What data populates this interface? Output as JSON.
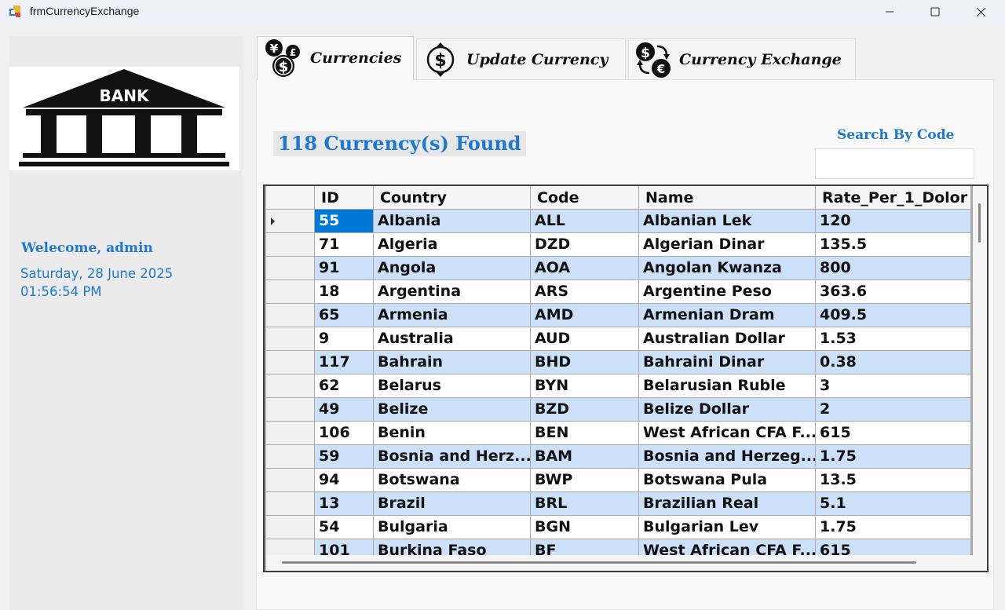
{
  "window": {
    "title": "frmCurrencyExchange"
  },
  "colors": {
    "accent": "#1e78d2",
    "row_alt": "#cce0fa",
    "selected": "#0078d7"
  },
  "logo": {
    "text": "BANK"
  },
  "user": {
    "welcome": "Welecome, admin",
    "date": "Saturday, 28 June 2025",
    "time": "01:56:54 PM"
  },
  "tabs": [
    {
      "label": "Currencies",
      "icon": "currencies-icon",
      "active": true
    },
    {
      "label": "Update Currency",
      "icon": "dollar-refresh-icon",
      "active": false
    },
    {
      "label": "Currency Exchange",
      "icon": "exchange-icon",
      "active": false
    }
  ],
  "main": {
    "found_count": "118",
    "found_suffix": " Currency(s) Found",
    "search_label": "Search By Code",
    "search_value": ""
  },
  "grid": {
    "columns": [
      "ID",
      "Country",
      "Code",
      "Name",
      "Rate_Per_1_Dolor"
    ],
    "rows": [
      [
        "55",
        "Albania",
        "ALL",
        "Albanian Lek",
        "120"
      ],
      [
        "71",
        "Algeria",
        "DZD",
        "Algerian Dinar",
        "135.5"
      ],
      [
        "91",
        "Angola",
        "AOA",
        "Angolan Kwanza",
        "800"
      ],
      [
        "18",
        "Argentina",
        "ARS",
        "Argentine Peso",
        "363.6"
      ],
      [
        "65",
        "Armenia",
        "AMD",
        "Armenian Dram",
        "409.5"
      ],
      [
        "9",
        "Australia",
        "AUD",
        "Australian Dollar",
        "1.53"
      ],
      [
        "117",
        "Bahrain",
        "BHD",
        "Bahraini Dinar",
        "0.38"
      ],
      [
        "62",
        "Belarus",
        "BYN",
        "Belarusian Ruble",
        "3"
      ],
      [
        "49",
        "Belize",
        "BZD",
        "Belize Dollar",
        "2"
      ],
      [
        "106",
        "Benin",
        "BEN",
        "West African CFA F...",
        "615"
      ],
      [
        "59",
        "Bosnia and Herz...",
        "BAM",
        "Bosnia and Herzeg...",
        "1.75"
      ],
      [
        "94",
        "Botswana",
        "BWP",
        "Botswana Pula",
        "13.5"
      ],
      [
        "13",
        "Brazil",
        "BRL",
        "Brazilian Real",
        "5.1"
      ],
      [
        "54",
        "Bulgaria",
        "BGN",
        "Bulgarian Lev",
        "1.75"
      ],
      [
        "101",
        "Burkina Faso",
        "BF",
        "West African CFA F...",
        "615"
      ]
    ]
  }
}
